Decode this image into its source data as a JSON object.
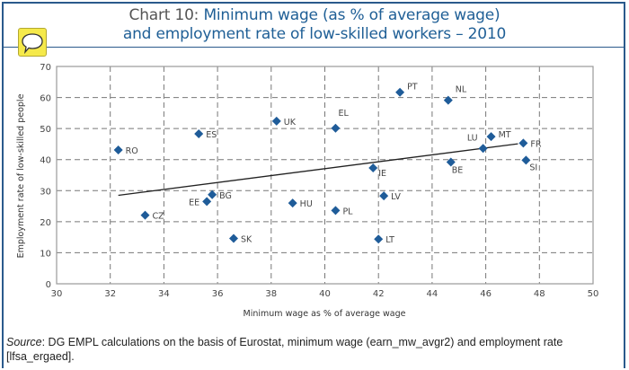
{
  "header": {
    "chart_number": "Chart 10:",
    "title_line1": "Minimum wage (as % of average wage)",
    "title_line2": "and employment rate of low-skilled workers – 2010",
    "icon": "speech-bubble-icon"
  },
  "colors": {
    "accent": "#1f5f96",
    "marker": "#1f5c99",
    "frame": "#2a5a8c",
    "icon_bg": "#f5e94a"
  },
  "chart_data": {
    "type": "scatter",
    "title": "Minimum wage (as % of average wage) and employment rate of low-skilled workers – 2010",
    "xlabel": "Minimum wage as % of average wage",
    "ylabel": "Employment rate of low-skilled people",
    "xlim": [
      30,
      50
    ],
    "ylim": [
      0,
      70
    ],
    "xticks": [
      30,
      32,
      34,
      36,
      38,
      40,
      42,
      44,
      46,
      48,
      50
    ],
    "yticks": [
      0,
      10,
      20,
      30,
      40,
      50,
      60,
      70
    ],
    "grid": true,
    "legend": "none",
    "points": [
      {
        "label": "RO",
        "x": 32.3,
        "y": 43.1
      },
      {
        "label": "CZ",
        "x": 33.3,
        "y": 22.1
      },
      {
        "label": "ES",
        "x": 35.3,
        "y": 48.3
      },
      {
        "label": "EE",
        "x": 35.6,
        "y": 26.5
      },
      {
        "label": "BG",
        "x": 35.8,
        "y": 28.7
      },
      {
        "label": "SK",
        "x": 36.6,
        "y": 14.6
      },
      {
        "label": "UK",
        "x": 38.2,
        "y": 52.4
      },
      {
        "label": "HU",
        "x": 38.8,
        "y": 26.0
      },
      {
        "label": "EL",
        "x": 40.4,
        "y": 50.1
      },
      {
        "label": "PL",
        "x": 40.4,
        "y": 23.6
      },
      {
        "label": "IE",
        "x": 41.8,
        "y": 37.3
      },
      {
        "label": "LV",
        "x": 42.2,
        "y": 28.3
      },
      {
        "label": "LT",
        "x": 42.0,
        "y": 14.4
      },
      {
        "label": "PT",
        "x": 42.8,
        "y": 61.7
      },
      {
        "label": "NL",
        "x": 44.6,
        "y": 59.1
      },
      {
        "label": "BE",
        "x": 44.7,
        "y": 39.2
      },
      {
        "label": "LU",
        "x": 45.9,
        "y": 43.6
      },
      {
        "label": "MT",
        "x": 46.2,
        "y": 47.4
      },
      {
        "label": "FR",
        "x": 47.4,
        "y": 45.3
      },
      {
        "label": "SI",
        "x": 47.5,
        "y": 39.8
      }
    ],
    "trendline": {
      "x": [
        32.3,
        47.2
      ],
      "y": [
        28.5,
        45.1
      ]
    }
  },
  "source": {
    "prefix": "Source",
    "text": ": DG EMPL calculations on the basis of Eurostat, minimum wage (earn_mw_avgr2) and employment rate [lfsa_ergaed]."
  }
}
